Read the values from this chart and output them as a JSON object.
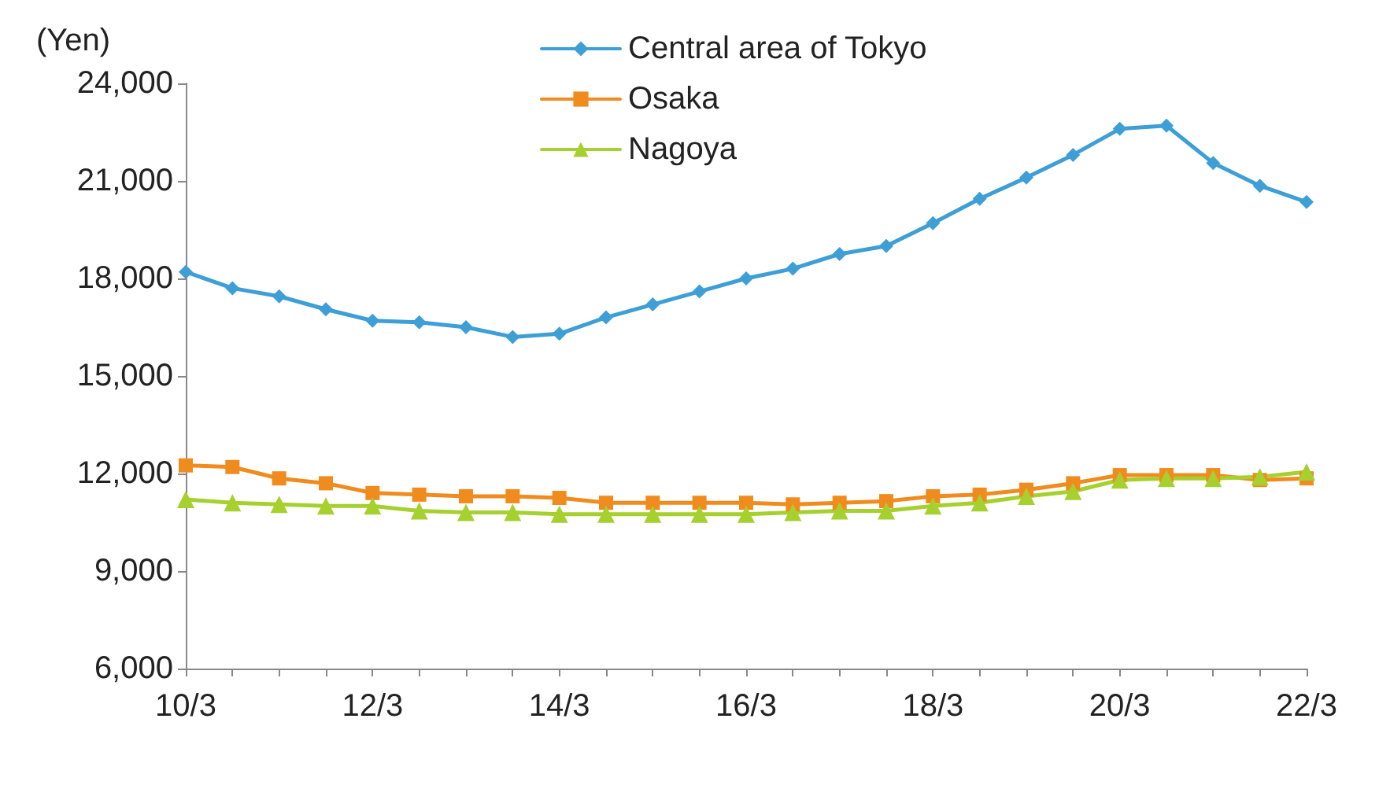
{
  "chart_data": {
    "type": "line",
    "ylabel": "(Yen)",
    "categories": [
      "10/3",
      null,
      null,
      null,
      "12/3",
      null,
      null,
      null,
      "14/3",
      null,
      null,
      null,
      "16/3",
      null,
      null,
      null,
      "18/3",
      null,
      null,
      null,
      "20/3",
      null,
      null,
      null,
      "22/3"
    ],
    "series": [
      {
        "name": "Central area of Tokyo",
        "color": "#3d9fd6",
        "marker": "diamond",
        "values": [
          18200,
          17700,
          17450,
          17050,
          16700,
          16650,
          16500,
          16200,
          16300,
          16800,
          17200,
          17600,
          18000,
          18300,
          18750,
          19000,
          19700,
          20450,
          21100,
          21800,
          22600,
          22700,
          21550,
          20850,
          20350
        ]
      },
      {
        "name": "Osaka",
        "color": "#f08c1e",
        "marker": "square",
        "values": [
          12250,
          12200,
          11850,
          11700,
          11400,
          11350,
          11300,
          11300,
          11250,
          11100,
          11100,
          11100,
          11100,
          11050,
          11100,
          11150,
          11300,
          11350,
          11500,
          11700,
          11950,
          11950,
          11950,
          11800,
          11850
        ]
      },
      {
        "name": "Nagoya",
        "color": "#a6d02d",
        "marker": "triangle",
        "values": [
          11200,
          11100,
          11050,
          11000,
          11000,
          10850,
          10800,
          10800,
          10750,
          10750,
          10750,
          10750,
          10750,
          10800,
          10850,
          10850,
          11000,
          11100,
          11300,
          11450,
          11800,
          11850,
          11850,
          11900,
          12050
        ]
      }
    ],
    "ylim": [
      6000,
      24000
    ],
    "yticks": [
      {
        "value": 6000,
        "label": "6,000"
      },
      {
        "value": 9000,
        "label": "9,000"
      },
      {
        "value": 12000,
        "label": "12,000"
      },
      {
        "value": 15000,
        "label": "15,000"
      },
      {
        "value": 18000,
        "label": "18,000"
      },
      {
        "value": 21000,
        "label": "21,000"
      },
      {
        "value": 24000,
        "label": "24,000"
      }
    ],
    "grid": false,
    "legend": "top",
    "line_style": "solid"
  }
}
